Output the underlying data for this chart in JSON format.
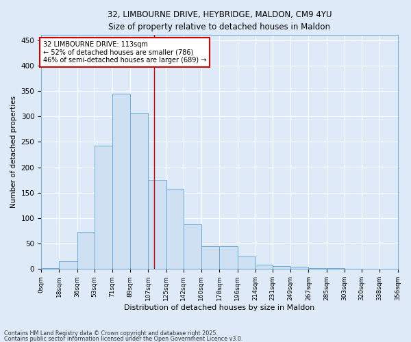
{
  "title_line1": "32, LIMBOURNE DRIVE, HEYBRIDGE, MALDON, CM9 4YU",
  "title_line2": "Size of property relative to detached houses in Maldon",
  "xlabel": "Distribution of detached houses by size in Maldon",
  "ylabel": "Number of detached properties",
  "bar_color": "#cfe0f3",
  "bar_edge_color": "#6aaad4",
  "background_color": "#deeaf7",
  "grid_color": "#ffffff",
  "property_line_x": 113,
  "bin_edges": [
    0,
    18,
    36,
    53,
    71,
    89,
    107,
    125,
    142,
    160,
    178,
    196,
    214,
    231,
    249,
    267,
    285,
    303,
    320,
    338,
    356
  ],
  "bin_labels": [
    "0sqm",
    "18sqm",
    "36sqm",
    "53sqm",
    "71sqm",
    "89sqm",
    "107sqm",
    "125sqm",
    "142sqm",
    "160sqm",
    "178sqm",
    "196sqm",
    "214sqm",
    "231sqm",
    "249sqm",
    "267sqm",
    "285sqm",
    "303sqm",
    "320sqm",
    "338sqm",
    "356sqm"
  ],
  "bar_heights": [
    2,
    15,
    73,
    243,
    345,
    307,
    175,
    158,
    88,
    45,
    45,
    25,
    9,
    6,
    4,
    2,
    2,
    1,
    1,
    0
  ],
  "ylim": [
    0,
    460
  ],
  "yticks": [
    0,
    50,
    100,
    150,
    200,
    250,
    300,
    350,
    400,
    450
  ],
  "annotation_text": "32 LIMBOURNE DRIVE: 113sqm\n← 52% of detached houses are smaller (786)\n46% of semi-detached houses are larger (689) →",
  "annotation_box_facecolor": "#ffffff",
  "annotation_box_edgecolor": "#cc0000",
  "line_color": "#cc0000",
  "footnote_line1": "Contains HM Land Registry data © Crown copyright and database right 2025.",
  "footnote_line2": "Contains public sector information licensed under the Open Government Licence v3.0."
}
